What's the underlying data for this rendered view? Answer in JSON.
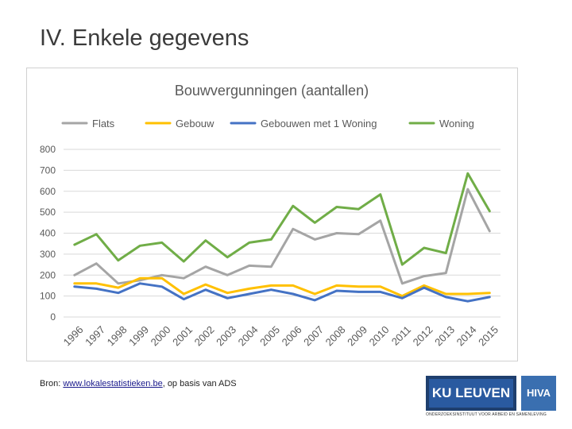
{
  "slide": {
    "title": "IV. Enkele gegevens",
    "source_prefix": "Bron: ",
    "source_link": "www.lokalestatistieken.be",
    "source_suffix": ", op basis van ADS"
  },
  "logo": {
    "kuleuven": "KU LEUVEN",
    "hiva": "HIVA",
    "subtitle": "ONDERZOEKSINSTITUUT VOOR ARBEID EN SAMENLEVING"
  },
  "colors": {
    "flats": "#a5a5a5",
    "gebouw": "#ffc000",
    "gebouwen1": "#4472c4",
    "woning": "#70ad47"
  },
  "chart_data": {
    "type": "line",
    "title": "Bouwvergunningen (aantallen)",
    "xlabel": "",
    "ylabel": "",
    "ylim": [
      0,
      800
    ],
    "yticks": [
      0,
      100,
      200,
      300,
      400,
      500,
      600,
      700,
      800
    ],
    "grid": true,
    "legend": "top",
    "categories": [
      "1996",
      "1997",
      "1998",
      "1999",
      "2000",
      "2001",
      "2002",
      "2003",
      "2004",
      "2005",
      "2006",
      "2007",
      "2008",
      "2009",
      "2010",
      "2011",
      "2012",
      "2013",
      "2014",
      "2015"
    ],
    "series": [
      {
        "name": "Flats",
        "color": "#a5a5a5",
        "values": [
          200,
          255,
          160,
          175,
          200,
          185,
          240,
          200,
          245,
          240,
          420,
          370,
          400,
          395,
          460,
          160,
          195,
          210,
          610,
          410
        ]
      },
      {
        "name": "Gebouw",
        "color": "#ffc000",
        "values": [
          160,
          160,
          140,
          185,
          185,
          110,
          155,
          115,
          135,
          150,
          150,
          110,
          150,
          145,
          145,
          100,
          150,
          110,
          110,
          115
        ]
      },
      {
        "name": "Gebouwen met 1 Woning",
        "color": "#4472c4",
        "values": [
          145,
          135,
          115,
          160,
          145,
          85,
          130,
          90,
          110,
          130,
          110,
          80,
          125,
          120,
          120,
          90,
          140,
          95,
          75,
          95
        ]
      },
      {
        "name": "Woning",
        "color": "#70ad47",
        "values": [
          345,
          395,
          270,
          340,
          355,
          265,
          365,
          285,
          355,
          370,
          530,
          450,
          525,
          515,
          585,
          250,
          330,
          305,
          685,
          505
        ]
      }
    ]
  }
}
